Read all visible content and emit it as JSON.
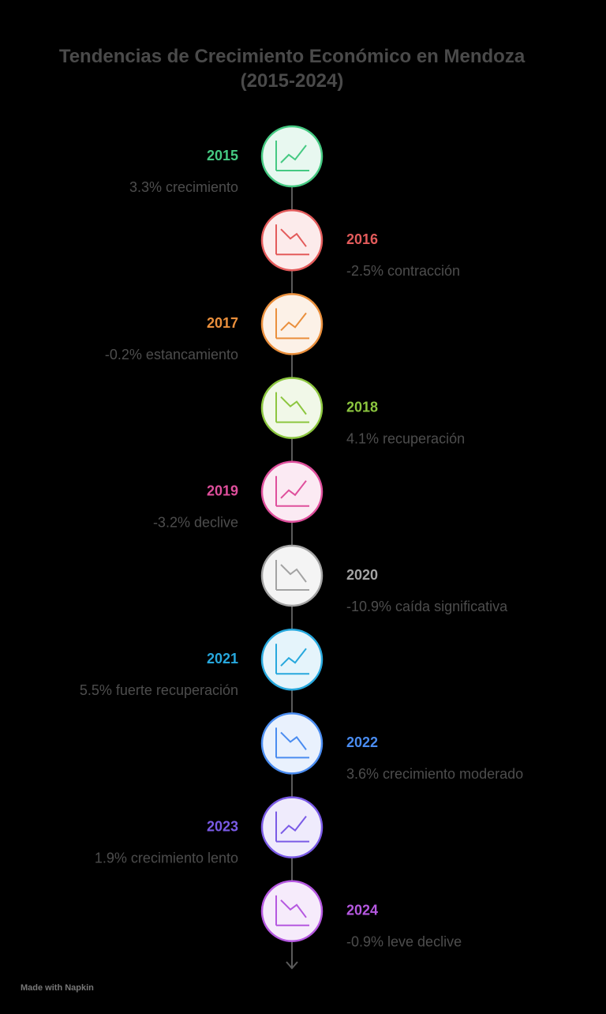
{
  "title": "Tendencias de Crecimiento Económico en Mendoza (2015-2024)",
  "items": [
    {
      "year": "2015",
      "text": "3.3% crecimiento",
      "color": "#45c982",
      "side": "left"
    },
    {
      "year": "2016",
      "text": "-2.5% contracción",
      "color": "#e35b5b",
      "side": "right"
    },
    {
      "year": "2017",
      "text": "-0.2% estancamiento",
      "color": "#ea8f3c",
      "side": "left"
    },
    {
      "year": "2018",
      "text": "4.1% recuperación",
      "color": "#8cc63f",
      "side": "right"
    },
    {
      "year": "2019",
      "text": "-3.2% declive",
      "color": "#df4f9c",
      "side": "left"
    },
    {
      "year": "2020",
      "text": "-10.9% caída significativa",
      "color": "#a3a3a3",
      "side": "right"
    },
    {
      "year": "2021",
      "text": "5.5% fuerte recuperación",
      "color": "#27a8dd",
      "side": "left"
    },
    {
      "year": "2022",
      "text": "3.6% crecimiento moderado",
      "color": "#4a8cf0",
      "side": "right"
    },
    {
      "year": "2023",
      "text": "1.9% crecimiento lento",
      "color": "#7a5be6",
      "side": "left"
    },
    {
      "year": "2024",
      "text": "-0.9% leve declive",
      "color": "#b558e0",
      "side": "right"
    }
  ],
  "footer": "Made with Napkin"
}
